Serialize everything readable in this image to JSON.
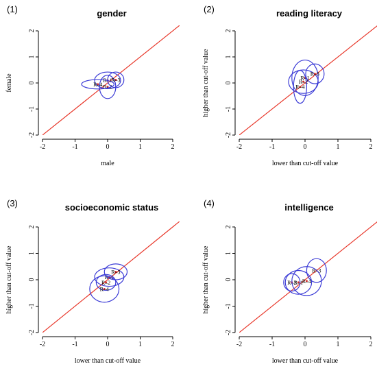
{
  "chart_data": [
    {
      "type": "scatter",
      "panel_label": "(1)",
      "title": "gender",
      "xlabel": "male",
      "ylabel": "female",
      "xlim": [
        -2,
        2
      ],
      "ylim": [
        -2,
        2
      ],
      "ticks": [
        -2,
        -1,
        0,
        1,
        2
      ],
      "reference_line": "y = x",
      "ellipses": [
        {
          "label": "R–1",
          "cx": 0.0,
          "cy": 0.1,
          "rx": 0.4,
          "ry": 0.32
        },
        {
          "label": "R–2",
          "cx": 0.0,
          "cy": -0.15,
          "rx": 0.25,
          "ry": 0.45
        },
        {
          "label": "R–3",
          "cx": 0.25,
          "cy": 0.12,
          "rx": 0.25,
          "ry": 0.3
        },
        {
          "label": "R–4",
          "cx": -0.3,
          "cy": -0.05,
          "rx": 0.5,
          "ry": 0.18
        }
      ]
    },
    {
      "type": "scatter",
      "panel_label": "(2)",
      "title": "reading literacy",
      "xlabel": "lower than cut-off value",
      "ylabel": "higher than cut-off value",
      "xlim": [
        -2,
        2
      ],
      "ylim": [
        -2,
        2
      ],
      "ticks": [
        -2,
        -1,
        0,
        1,
        2
      ],
      "reference_line": "y = x",
      "ellipses": [
        {
          "label": "R–1",
          "cx": 0.0,
          "cy": 0.2,
          "rx": 0.4,
          "ry": 0.68
        },
        {
          "label": "R–2",
          "cx": -0.05,
          "cy": 0.05,
          "rx": 0.45,
          "ry": 0.45
        },
        {
          "label": "R–3",
          "cx": 0.3,
          "cy": 0.35,
          "rx": 0.28,
          "ry": 0.38
        },
        {
          "label": "R–4",
          "cx": -0.15,
          "cy": -0.15,
          "rx": 0.2,
          "ry": 0.63
        }
      ]
    },
    {
      "type": "scatter",
      "panel_label": "(3)",
      "title": "socioeconomic status",
      "xlabel": "lower than cut-off value",
      "ylabel": "higher than cut-off value",
      "xlim": [
        -2,
        2
      ],
      "ylim": [
        -2,
        2
      ],
      "ticks": [
        -2,
        -1,
        0,
        1,
        2
      ],
      "reference_line": "y = x",
      "ellipses": [
        {
          "label": "R–1",
          "cx": 0.05,
          "cy": 0.1,
          "rx": 0.45,
          "ry": 0.35
        },
        {
          "label": "R–2",
          "cx": -0.05,
          "cy": -0.1,
          "rx": 0.3,
          "ry": 0.3
        },
        {
          "label": "R–3",
          "cx": 0.25,
          "cy": 0.3,
          "rx": 0.35,
          "ry": 0.3
        },
        {
          "label": "R–4",
          "cx": -0.1,
          "cy": -0.35,
          "rx": 0.45,
          "ry": 0.5
        }
      ]
    },
    {
      "type": "scatter",
      "panel_label": "(4)",
      "title": "intelligence",
      "xlabel": "lower than cut-off value",
      "ylabel": "higher than cut-off value",
      "xlim": [
        -2,
        2
      ],
      "ylim": [
        -2,
        2
      ],
      "ticks": [
        -2,
        -1,
        0,
        1,
        2
      ],
      "reference_line": "y = x",
      "ellipses": [
        {
          "label": "R–1",
          "cx": -0.2,
          "cy": -0.1,
          "rx": 0.4,
          "ry": 0.45
        },
        {
          "label": "R–2",
          "cx": -0.4,
          "cy": -0.1,
          "rx": 0.25,
          "ry": 0.33
        },
        {
          "label": "R–3",
          "cx": 0.35,
          "cy": 0.35,
          "rx": 0.3,
          "ry": 0.45
        },
        {
          "label": "R–4",
          "cx": 0.05,
          "cy": -0.05,
          "rx": 0.45,
          "ry": 0.55
        }
      ]
    }
  ]
}
